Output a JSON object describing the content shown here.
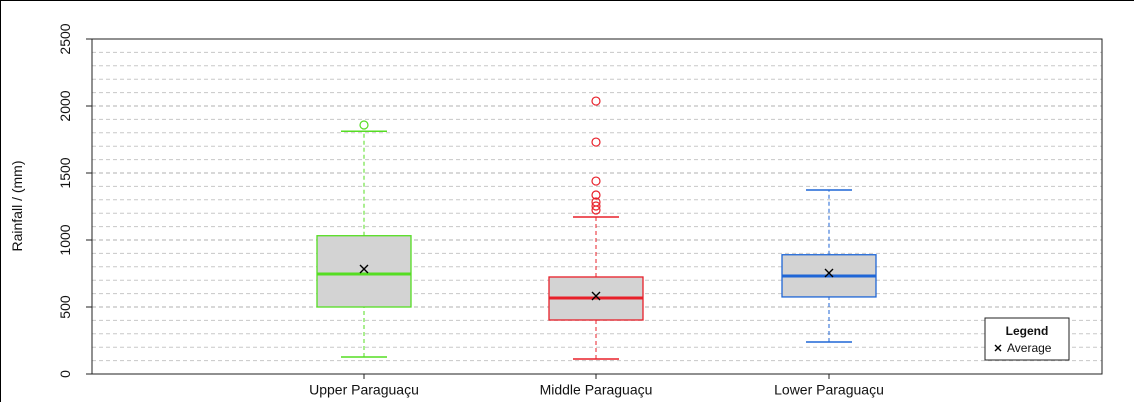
{
  "chart_data": {
    "type": "boxplot",
    "y_label": "Rainfall / (mm)",
    "categories": [
      "Upper Paraguaçu",
      "Middle Paraguaçu",
      "Lower Paraguaçu"
    ],
    "ylim": [
      0,
      2500
    ],
    "yticks": [
      0,
      500,
      1000,
      1500,
      2000,
      2500
    ],
    "minor_yticks": [
      100,
      200,
      300,
      400,
      600,
      700,
      800,
      900,
      1100,
      1200,
      1300,
      1400,
      1600,
      1700,
      1800,
      1900,
      2100,
      2200,
      2300,
      2400
    ],
    "grid": true,
    "box_fill": "#d3d3d3",
    "boxes": [
      {
        "color": "#55dd22",
        "whisker_low": 127,
        "q1": 500,
        "median": 746,
        "q3": 1032,
        "whisker_high": 1812,
        "mean": 784,
        "outliers": [
          1858
        ]
      },
      {
        "color": "#e8202a",
        "whisker_low": 112,
        "q1": 403,
        "median": 567,
        "q3": 724,
        "whisker_high": 1172,
        "mean": 582,
        "outliers": [
          2037,
          1731,
          1440,
          1336,
          1284,
          1254,
          1224
        ]
      },
      {
        "color": "#1f66d6",
        "whisker_low": 239,
        "q1": 575,
        "median": 731,
        "q3": 890,
        "whisker_high": 1373,
        "mean": 754,
        "outliers": []
      }
    ],
    "legend": {
      "title": "Legend",
      "entries": [
        "Average"
      ],
      "position": "bottom-right"
    }
  }
}
